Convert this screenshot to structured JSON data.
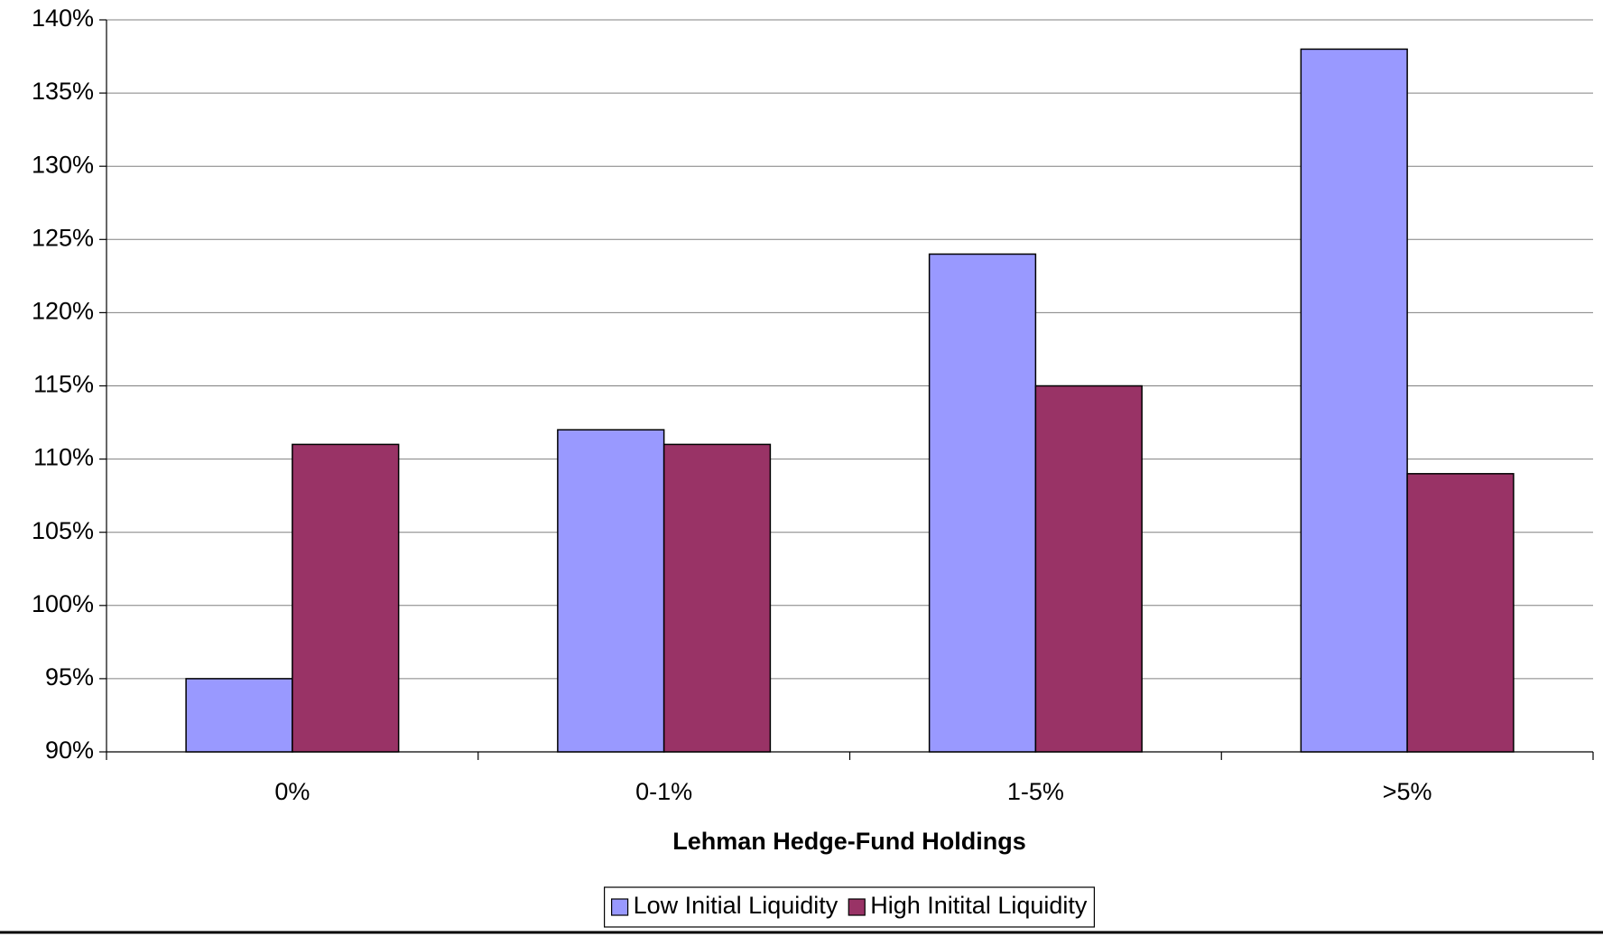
{
  "chart_data": {
    "type": "bar",
    "x_label": "Lehman Hedge-Fund Holdings",
    "categories": [
      "0%",
      "0-1%",
      "1-5%",
      ">5%"
    ],
    "series": [
      {
        "name": "Low Initial Liquidity",
        "color": "#9999ff",
        "values": [
          95,
          112,
          124,
          138
        ]
      },
      {
        "name": "High Initital Liquidity",
        "color": "#993366",
        "values": [
          111,
          111,
          115,
          109
        ]
      }
    ],
    "ylim": [
      90,
      140
    ],
    "yticks": [
      {
        "value": 90,
        "label": "90%"
      },
      {
        "value": 95,
        "label": "95%"
      },
      {
        "value": 100,
        "label": "100%"
      },
      {
        "value": 105,
        "label": "105%"
      },
      {
        "value": 110,
        "label": "110%"
      },
      {
        "value": 115,
        "label": "115%"
      },
      {
        "value": 120,
        "label": "120%"
      },
      {
        "value": 125,
        "label": "125%"
      },
      {
        "value": 130,
        "label": "130%"
      },
      {
        "value": 135,
        "label": "135%"
      },
      {
        "value": 140,
        "label": "140%"
      }
    ],
    "grid": true,
    "legend": "bottom"
  }
}
